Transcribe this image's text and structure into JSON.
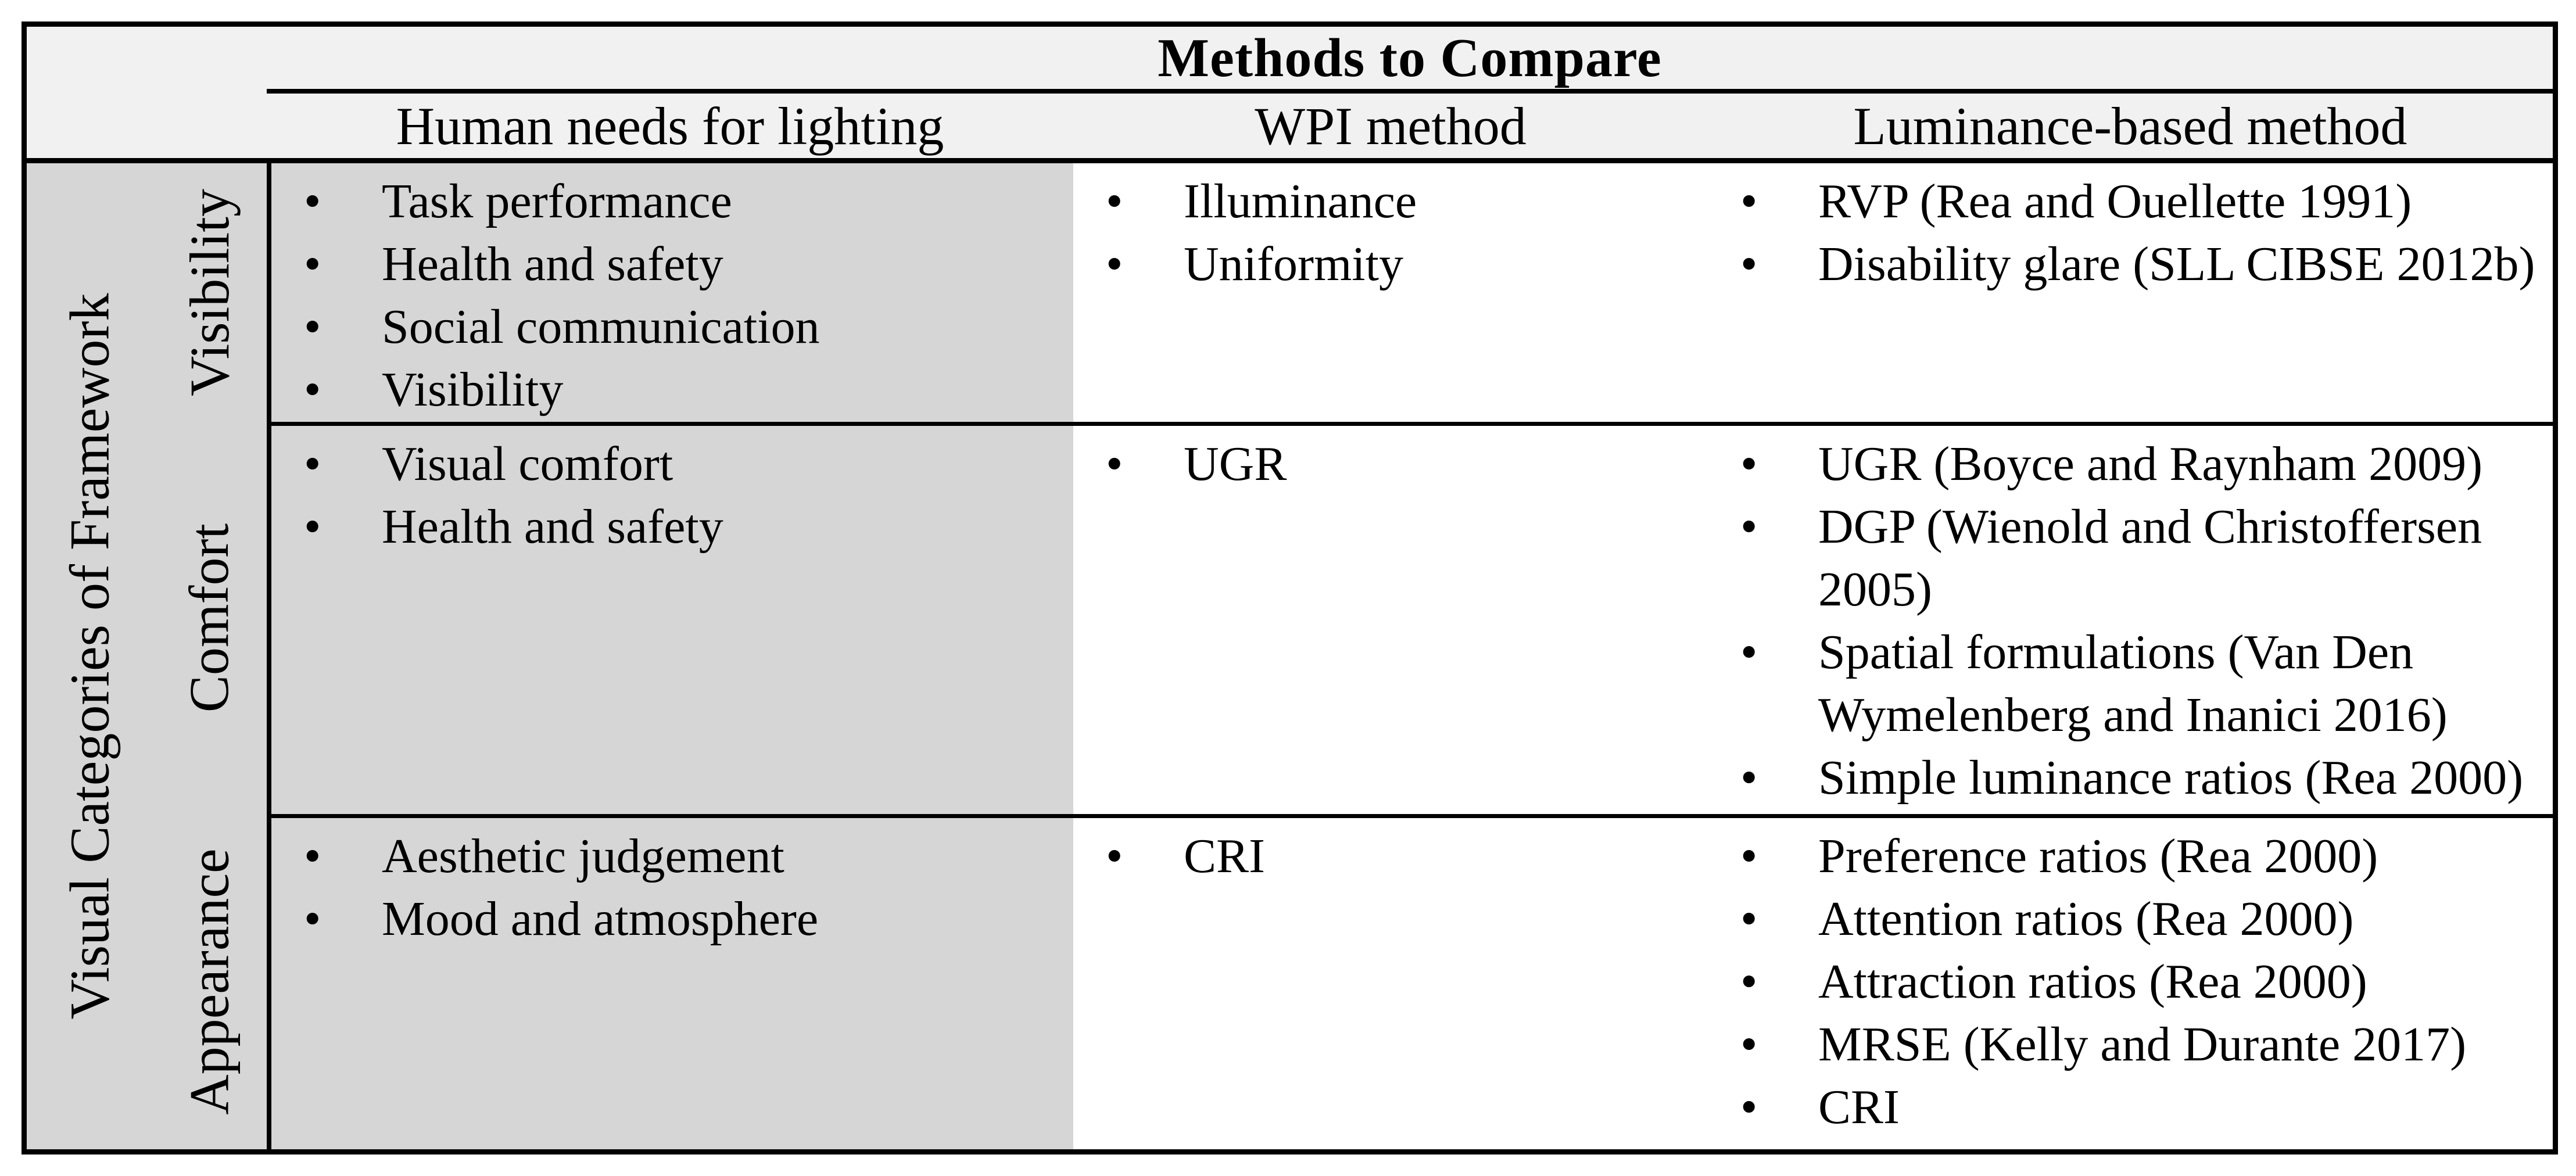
{
  "table": {
    "title": "Methods to Compare",
    "bullet_glyph": "•",
    "row_group_label": "Visual Categories of Framework",
    "columns": [
      "Human needs for lighting",
      "WPI method",
      "Luminance-based method"
    ],
    "rows": [
      {
        "category": "Visibility",
        "human_needs": [
          "Task performance",
          "Health and safety",
          "Social communication",
          "Visibility"
        ],
        "wpi": [
          "Illuminance",
          "Uniformity"
        ],
        "luminance": [
          "RVP (Rea and Ouellette 1991)",
          "Disability glare (SLL CIBSE 2012b)"
        ]
      },
      {
        "category": "Comfort",
        "human_needs": [
          "Visual comfort",
          "Health and safety"
        ],
        "wpi": [
          "UGR"
        ],
        "luminance": [
          "UGR (Boyce and Raynham 2009)",
          "DGP (Wienold and Christoffersen 2005)",
          "Spatial formulations (Van Den Wymelenberg and Inanici 2016)",
          "Simple luminance ratios (Rea 2000)"
        ]
      },
      {
        "category": "Appearance",
        "human_needs": [
          "Aesthetic judgement",
          "Mood and atmosphere"
        ],
        "wpi": [
          "CRI"
        ],
        "luminance": [
          "Preference ratios (Rea 2000)",
          "Attention ratios (Rea 2000)",
          "Attraction ratios (Rea 2000)",
          "MRSE (Kelly and Durante 2017)",
          "CRI"
        ]
      }
    ],
    "colors": {
      "header_bg": "#f1f1f1",
      "left_panel_bg": "#d6d6d6",
      "body_bg": "#ffffff",
      "border": "#000000"
    }
  }
}
